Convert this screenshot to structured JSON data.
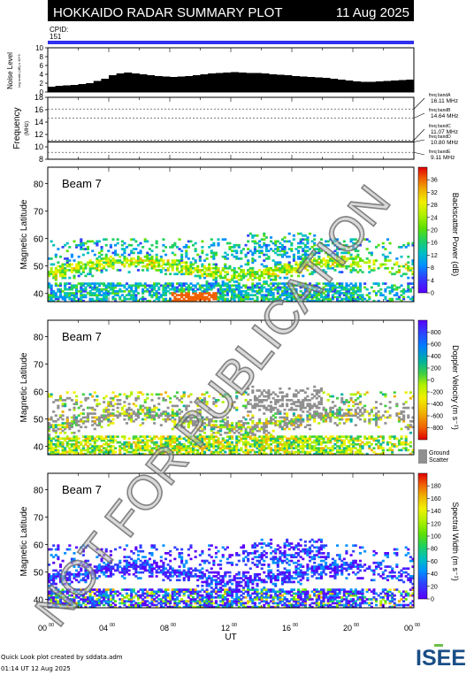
{
  "header": {
    "title": "HOKKAIDO RADAR SUMMARY PLOT",
    "date": "11 Aug 2025",
    "cpid_label": "CPID:",
    "cpid_value": "151"
  },
  "colors": {
    "header_bg": "#000000",
    "cpid_bar": "#3030f0",
    "ground_scatter": "#909090",
    "grid": "#888888"
  },
  "footer": {
    "line1": "Quick Look plot created by sddata.adm",
    "line2": "01:14 UT 12 Aug 2025",
    "logo_text": "ISEE"
  },
  "watermark": "NOT FOR PUBLICATION",
  "chart_data": [
    {
      "type": "bar",
      "id": "noise",
      "ylabel": "Noise Level",
      "ylabel_sub": "log scale (dB) x 10^3",
      "ylim": [
        0,
        10
      ],
      "yticks": [
        "0",
        "2",
        "4",
        "6",
        "8",
        "10"
      ],
      "x_hours": [
        0,
        0.5,
        1,
        1.5,
        2,
        2.5,
        3,
        3.5,
        4,
        4.5,
        5,
        5.5,
        6,
        6.5,
        7,
        7.5,
        8,
        8.5,
        9,
        9.5,
        10,
        10.5,
        11,
        11.5,
        12,
        12.5,
        13,
        13.5,
        14,
        14.5,
        15,
        15.5,
        16,
        16.5,
        17,
        17.5,
        18,
        18.5,
        19,
        19.5,
        20,
        20.5,
        21,
        21.5,
        22,
        22.5,
        23,
        23.5
      ],
      "values": [
        1.2,
        1.4,
        1.5,
        1.6,
        1.8,
        2.0,
        2.5,
        3.0,
        3.8,
        4.2,
        4.4,
        4.2,
        4.0,
        3.8,
        3.6,
        3.5,
        3.4,
        3.5,
        3.6,
        3.8,
        4.0,
        4.2,
        4.3,
        4.4,
        4.5,
        4.4,
        4.3,
        4.3,
        4.2,
        4.0,
        3.9,
        3.8,
        3.6,
        3.5,
        3.4,
        3.3,
        3.2,
        3.0,
        2.8,
        2.6,
        2.4,
        2.3,
        2.3,
        2.4,
        2.5,
        2.6,
        2.7,
        2.8
      ]
    },
    {
      "type": "line",
      "id": "frequency",
      "ylabel": "Frequency",
      "ylabel_unit": "(MHz)",
      "ylim": [
        8,
        18
      ],
      "yticks": [
        "8",
        "10",
        "12",
        "14",
        "16",
        "18"
      ],
      "bands": [
        {
          "name": "freq bandA",
          "mhz": 16.11,
          "label": "16.11 MHz"
        },
        {
          "name": "freq bandB",
          "mhz": 14.64,
          "label": "14.64 MHz"
        },
        {
          "name": "freq bandC",
          "mhz": 11.07,
          "label": "11.07 MHz"
        },
        {
          "name": "freq bandD",
          "mhz": 10.8,
          "label": "10.80 MHz"
        },
        {
          "name": "freq bandE",
          "mhz": 9.11,
          "label": "9.11 MHz"
        }
      ],
      "active_mhz": 10.8
    },
    {
      "type": "heatmap",
      "id": "power",
      "beam_label": "Beam  7",
      "ylabel": "Magnetic Latitude",
      "ylim": [
        37,
        86
      ],
      "yticks": [
        "40",
        "50",
        "60",
        "70",
        "80"
      ],
      "colorbar_label": "Backscatter Power (dB)",
      "colorbar_ticks": [
        "0",
        "4",
        "8",
        "12",
        "16",
        "20",
        "24",
        "28",
        "32",
        "36"
      ],
      "colorbar_range": [
        0,
        40
      ],
      "colors": [
        "#5a00ff",
        "#3040ff",
        "#0090ff",
        "#00c0c0",
        "#20d060",
        "#60e000",
        "#b0f000",
        "#f0f000",
        "#f0b000",
        "#f06000",
        "#e00000"
      ]
    },
    {
      "type": "heatmap",
      "id": "velocity",
      "beam_label": "Beam  7",
      "ylabel": "Magnetic Latitude",
      "ylim": [
        37,
        86
      ],
      "yticks": [
        "40",
        "50",
        "60",
        "70",
        "80"
      ],
      "colorbar_label": "Doppler Velocity (m s⁻¹)",
      "colorbar_ticks": [
        "-800",
        "-600",
        "-400",
        "-200",
        "0",
        "200",
        "400",
        "600",
        "800"
      ],
      "colorbar_range": [
        -1000,
        1000
      ],
      "ground_label_1": "Ground",
      "ground_label_2": "Scatter",
      "colors": [
        "#e00000",
        "#f06000",
        "#f0b000",
        "#f0f000",
        "#b0f000",
        "#40d040",
        "#00b0a0",
        "#0080ff",
        "#3040ff",
        "#5a00ff"
      ]
    },
    {
      "type": "heatmap",
      "id": "width",
      "beam_label": "Beam  7",
      "ylabel": "Magnetic Latitude",
      "ylim": [
        37,
        86
      ],
      "yticks": [
        "40",
        "50",
        "60",
        "70",
        "80"
      ],
      "colorbar_label": "Spectral Width (m s⁻¹)",
      "colorbar_ticks": [
        "0",
        "20",
        "40",
        "60",
        "80",
        "100",
        "120",
        "140",
        "160",
        "180"
      ],
      "colorbar_range": [
        0,
        200
      ],
      "colors": [
        "#5a00ff",
        "#3040ff",
        "#0090ff",
        "#00c0c0",
        "#20d060",
        "#60e000",
        "#b0f000",
        "#f0f000",
        "#f0b000",
        "#f06000",
        "#e00000"
      ]
    }
  ],
  "x_axis": {
    "label": "UT",
    "ticks": [
      "00",
      "04",
      "08",
      "12",
      "16",
      "20",
      "00"
    ],
    "tick_suffix": "00",
    "range_hours": [
      0,
      24
    ]
  }
}
